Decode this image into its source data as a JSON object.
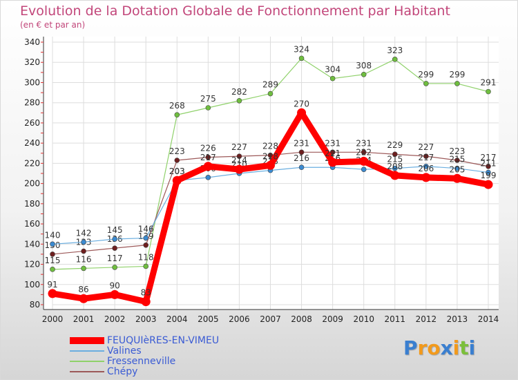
{
  "title": "Evolution de la Dotation Globale de Fonctionnement par Habitant",
  "subtitle": "(en € et par an)",
  "logo": {
    "text": "Proxiti",
    "letters": [
      "P",
      "r",
      "o",
      "x",
      "i",
      "t",
      "i"
    ],
    "colors": [
      "#3a7fd0",
      "#f29a1c",
      "#f29a1c",
      "#3a7fd0",
      "#f29a1c",
      "#7bbf3a",
      "#3a7fd0"
    ]
  },
  "chart_data": {
    "type": "line",
    "x": [
      "2000",
      "2001",
      "2002",
      "2003",
      "2004",
      "2005",
      "2006",
      "2007",
      "2008",
      "2009",
      "2010",
      "2011",
      "2012",
      "2013",
      "2014"
    ],
    "ylim": [
      80,
      340
    ],
    "yticks": [
      80,
      100,
      120,
      140,
      160,
      180,
      200,
      220,
      240,
      260,
      280,
      300,
      320,
      340
    ],
    "grid": true,
    "legend_position": "bottom-left",
    "series": [
      {
        "name": "Fressenneville",
        "color": "#8fd16a",
        "marker": "#6fbe3f",
        "weight": "thin",
        "values": [
          115,
          116,
          117,
          118,
          268,
          275,
          282,
          289,
          324,
          304,
          308,
          323,
          299,
          299,
          291
        ]
      },
      {
        "name": "Chépy",
        "color": "#9c5858",
        "marker": "#6e1f1f",
        "weight": "thin",
        "values": [
          130,
          133,
          136,
          139,
          223,
          226,
          227,
          228,
          231,
          231,
          231,
          229,
          227,
          223,
          217
        ]
      },
      {
        "name": "Valines",
        "color": "#6aaee0",
        "marker": "#3b8ad0",
        "weight": "thin",
        "values": [
          140,
          142,
          145,
          146,
          203,
          206,
          210,
          213,
          216,
          216,
          214,
          215,
          217,
          215,
          211
        ]
      },
      {
        "name": "FEUQUIèRES-EN-VIMEU",
        "color": "#ff0000",
        "marker": "#ff0000",
        "weight": "thick",
        "values": [
          91,
          86,
          90,
          83,
          203,
          217,
          214,
          218,
          270,
          221,
          222,
          208,
          206,
          205,
          199
        ]
      }
    ],
    "legend_order": [
      "FEUQUIèRES-EN-VIMEU",
      "Valines",
      "Fressenneville",
      "Chépy"
    ]
  }
}
